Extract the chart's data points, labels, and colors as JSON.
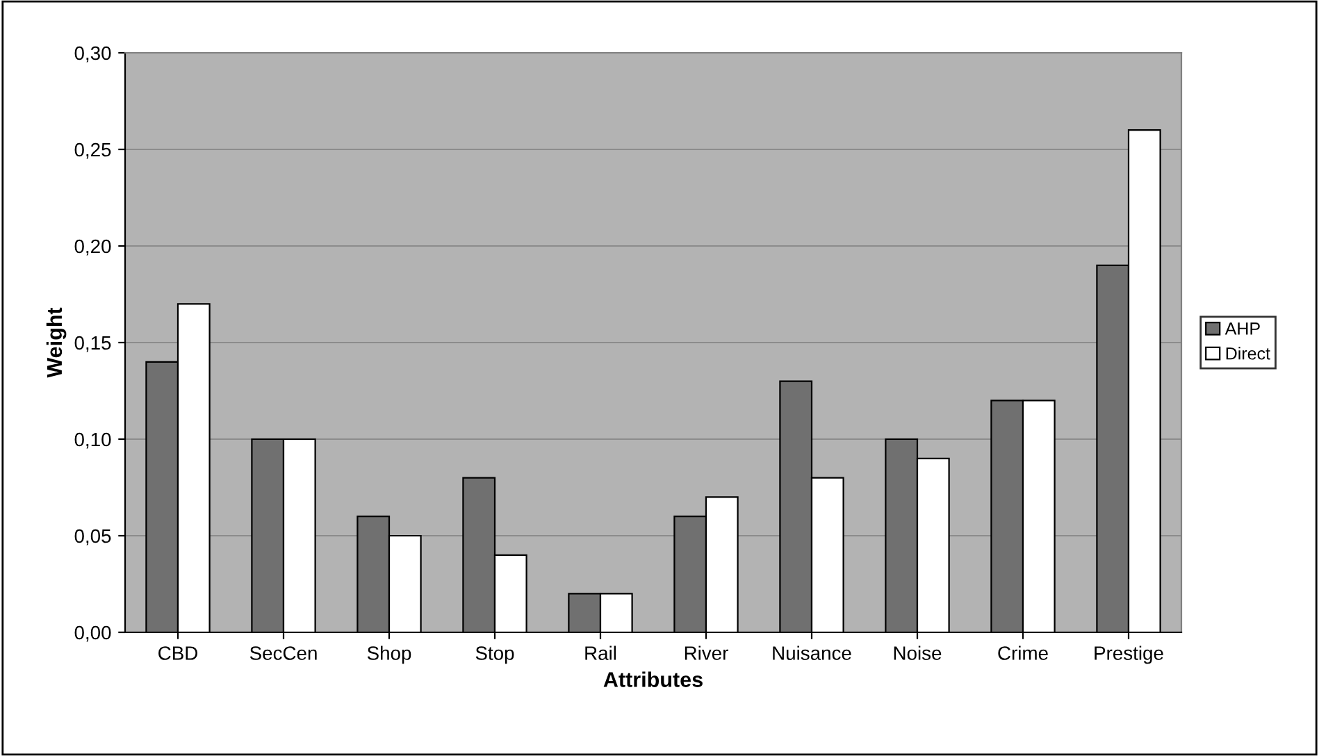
{
  "chart_data": {
    "type": "bar",
    "xlabel": "Attributes",
    "ylabel": "Weight",
    "categories": [
      "CBD",
      "SecCen",
      "Shop",
      "Stop",
      "Rail",
      "River",
      "Nuisance",
      "Noise",
      "Crime",
      "Prestige"
    ],
    "series": [
      {
        "name": "AHP",
        "color": "#707070",
        "values": [
          0.14,
          0.1,
          0.06,
          0.08,
          0.02,
          0.06,
          0.13,
          0.1,
          0.12,
          0.19
        ]
      },
      {
        "name": "Direct",
        "color": "#ffffff",
        "values": [
          0.17,
          0.1,
          0.05,
          0.04,
          0.02,
          0.07,
          0.08,
          0.09,
          0.12,
          0.26
        ]
      }
    ],
    "ylim": [
      0,
      0.3
    ],
    "yticks": [
      {
        "value": 0,
        "label": "0,00"
      },
      {
        "value": 0.05,
        "label": "0,05"
      },
      {
        "value": 0.1,
        "label": "0,10"
      },
      {
        "value": 0.15,
        "label": "0,15"
      },
      {
        "value": 0.2,
        "label": "0,20"
      },
      {
        "value": 0.25,
        "label": "0,25"
      },
      {
        "value": 0.3,
        "label": "0,30"
      }
    ],
    "grid": "y",
    "legend": "right"
  }
}
